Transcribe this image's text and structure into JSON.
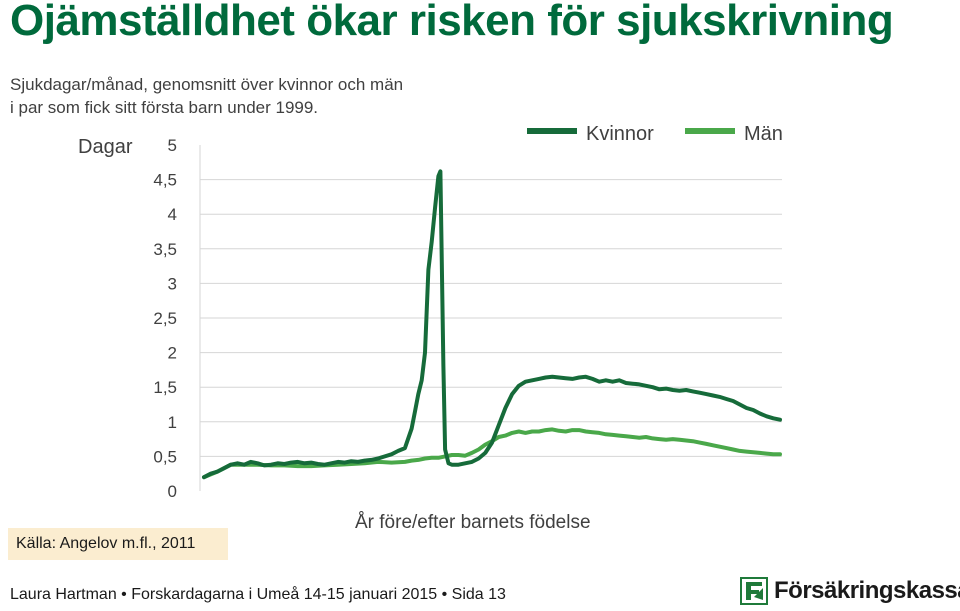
{
  "header": {
    "title": "Ojämställdhet ökar risken för sjukskrivning",
    "subtitle_line1": "Sjukdagar/månad, genomsnitt över kvinnor och män",
    "subtitle_line2": "i par som fick sitt första barn under 1999."
  },
  "source": "Källa: Angelov m.fl., 2011",
  "footer": {
    "text": "Laura Hartman • Forskardagarna i Umeå 14-15 januari 2015 • Sida 13",
    "logo_text": "Försäkringskassan"
  },
  "colors": {
    "title": "#006a3c",
    "kvinnor": "#166b3a",
    "man": "#4aa84a",
    "grid": "#d6d6d6",
    "source_bg": "#fbedd0",
    "logo": "#1f7a3a"
  },
  "chart_data": {
    "type": "line",
    "ylabel": "Dagar",
    "xlabel": "År före/efter barnets födelse",
    "ylim": [
      0,
      5
    ],
    "yticks": [
      "0",
      "0,5",
      "1",
      "1,5",
      "2",
      "2,5",
      "3",
      "3,5",
      "4",
      "4,5",
      "5"
    ],
    "grid": true,
    "legend_position": "top-right",
    "series": [
      {
        "name": "Kvinnor",
        "points": [
          [
            0,
            0.2
          ],
          [
            2,
            0.25
          ],
          [
            4,
            0.28
          ],
          [
            6,
            0.33
          ],
          [
            8,
            0.38
          ],
          [
            10,
            0.4
          ],
          [
            12,
            0.38
          ],
          [
            14,
            0.42
          ],
          [
            16,
            0.4
          ],
          [
            18,
            0.37
          ],
          [
            20,
            0.38
          ],
          [
            22,
            0.4
          ],
          [
            24,
            0.39
          ],
          [
            26,
            0.41
          ],
          [
            28,
            0.42
          ],
          [
            30,
            0.4
          ],
          [
            32,
            0.41
          ],
          [
            34,
            0.39
          ],
          [
            36,
            0.38
          ],
          [
            38,
            0.4
          ],
          [
            40,
            0.42
          ],
          [
            42,
            0.41
          ],
          [
            44,
            0.43
          ],
          [
            46,
            0.42
          ],
          [
            48,
            0.44
          ],
          [
            50,
            0.45
          ],
          [
            52,
            0.47
          ],
          [
            54,
            0.5
          ],
          [
            56,
            0.53
          ],
          [
            58,
            0.58
          ],
          [
            60,
            0.62
          ],
          [
            62,
            0.9
          ],
          [
            63,
            1.15
          ],
          [
            64,
            1.4
          ],
          [
            65,
            1.6
          ],
          [
            66,
            2.0
          ],
          [
            67,
            3.2
          ],
          [
            68,
            3.6
          ],
          [
            69,
            4.1
          ],
          [
            70,
            4.55
          ],
          [
            70.6,
            4.62
          ],
          [
            71,
            3.3
          ],
          [
            71.5,
            1.8
          ],
          [
            72,
            0.6
          ],
          [
            73,
            0.4
          ],
          [
            74,
            0.38
          ],
          [
            76,
            0.38
          ],
          [
            78,
            0.4
          ],
          [
            80,
            0.42
          ],
          [
            82,
            0.47
          ],
          [
            84,
            0.55
          ],
          [
            86,
            0.7
          ],
          [
            88,
            0.95
          ],
          [
            90,
            1.2
          ],
          [
            92,
            1.4
          ],
          [
            94,
            1.52
          ],
          [
            96,
            1.58
          ],
          [
            98,
            1.6
          ],
          [
            100,
            1.62
          ],
          [
            102,
            1.64
          ],
          [
            104,
            1.65
          ],
          [
            106,
            1.64
          ],
          [
            108,
            1.63
          ],
          [
            110,
            1.62
          ],
          [
            112,
            1.64
          ],
          [
            114,
            1.65
          ],
          [
            116,
            1.62
          ],
          [
            118,
            1.58
          ],
          [
            120,
            1.6
          ],
          [
            122,
            1.58
          ],
          [
            124,
            1.6
          ],
          [
            126,
            1.56
          ],
          [
            128,
            1.55
          ],
          [
            130,
            1.54
          ],
          [
            132,
            1.52
          ],
          [
            134,
            1.5
          ],
          [
            136,
            1.47
          ],
          [
            138,
            1.48
          ],
          [
            140,
            1.46
          ],
          [
            142,
            1.45
          ],
          [
            144,
            1.46
          ],
          [
            146,
            1.44
          ],
          [
            148,
            1.42
          ],
          [
            150,
            1.4
          ],
          [
            152,
            1.38
          ],
          [
            154,
            1.36
          ],
          [
            156,
            1.33
          ],
          [
            158,
            1.3
          ],
          [
            160,
            1.25
          ],
          [
            162,
            1.2
          ],
          [
            164,
            1.17
          ],
          [
            166,
            1.12
          ],
          [
            168,
            1.08
          ],
          [
            170,
            1.05
          ],
          [
            172,
            1.03
          ]
        ]
      },
      {
        "name": "Män",
        "points": [
          [
            0,
            0.2
          ],
          [
            4,
            0.28
          ],
          [
            8,
            0.38
          ],
          [
            12,
            0.38
          ],
          [
            16,
            0.38
          ],
          [
            20,
            0.37
          ],
          [
            24,
            0.37
          ],
          [
            28,
            0.36
          ],
          [
            32,
            0.36
          ],
          [
            36,
            0.37
          ],
          [
            40,
            0.38
          ],
          [
            44,
            0.39
          ],
          [
            48,
            0.4
          ],
          [
            52,
            0.42
          ],
          [
            56,
            0.41
          ],
          [
            60,
            0.42
          ],
          [
            62,
            0.44
          ],
          [
            64,
            0.45
          ],
          [
            66,
            0.47
          ],
          [
            68,
            0.48
          ],
          [
            70,
            0.48
          ],
          [
            72,
            0.5
          ],
          [
            74,
            0.52
          ],
          [
            76,
            0.52
          ],
          [
            78,
            0.51
          ],
          [
            80,
            0.55
          ],
          [
            82,
            0.6
          ],
          [
            84,
            0.67
          ],
          [
            86,
            0.72
          ],
          [
            88,
            0.78
          ],
          [
            90,
            0.8
          ],
          [
            92,
            0.84
          ],
          [
            94,
            0.86
          ],
          [
            96,
            0.84
          ],
          [
            98,
            0.86
          ],
          [
            100,
            0.86
          ],
          [
            102,
            0.88
          ],
          [
            104,
            0.89
          ],
          [
            106,
            0.87
          ],
          [
            108,
            0.86
          ],
          [
            110,
            0.88
          ],
          [
            112,
            0.88
          ],
          [
            114,
            0.86
          ],
          [
            116,
            0.85
          ],
          [
            118,
            0.84
          ],
          [
            120,
            0.82
          ],
          [
            122,
            0.81
          ],
          [
            124,
            0.8
          ],
          [
            126,
            0.79
          ],
          [
            128,
            0.78
          ],
          [
            130,
            0.77
          ],
          [
            132,
            0.78
          ],
          [
            134,
            0.76
          ],
          [
            136,
            0.75
          ],
          [
            138,
            0.74
          ],
          [
            140,
            0.75
          ],
          [
            142,
            0.74
          ],
          [
            144,
            0.73
          ],
          [
            146,
            0.72
          ],
          [
            148,
            0.7
          ],
          [
            150,
            0.68
          ],
          [
            152,
            0.66
          ],
          [
            154,
            0.64
          ],
          [
            156,
            0.62
          ],
          [
            158,
            0.6
          ],
          [
            160,
            0.58
          ],
          [
            162,
            0.57
          ],
          [
            164,
            0.56
          ],
          [
            166,
            0.55
          ],
          [
            168,
            0.54
          ],
          [
            170,
            0.53
          ],
          [
            172,
            0.53
          ]
        ]
      }
    ]
  }
}
